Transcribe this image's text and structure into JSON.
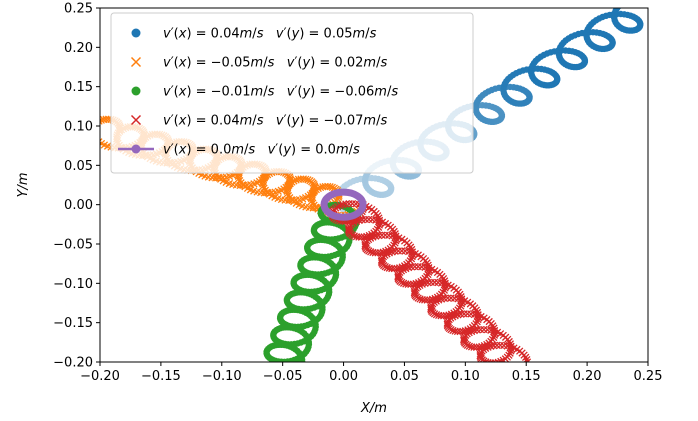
{
  "chart_data": {
    "type": "scatter",
    "xlabel": "X/m",
    "ylabel": "Y/m",
    "xlim": [
      -0.2,
      0.25
    ],
    "ylim": [
      -0.2,
      0.25
    ],
    "xticks": [
      "−0.20",
      "−0.15",
      "−0.10",
      "−0.05",
      "0.00",
      "0.05",
      "0.10",
      "0.15",
      "0.20",
      "0.25"
    ],
    "yticks": [
      "−0.20",
      "−0.15",
      "−0.10",
      "−0.05",
      "0.00",
      "0.05",
      "0.10",
      "0.15",
      "0.20",
      "0.25"
    ],
    "legend_position": "top-left",
    "series": [
      {
        "name": "v′(x) = 0.04m/s   v′(y) = 0.05m/s",
        "color": "#1f77b4",
        "marker": "circle",
        "shade": "light-to-dark",
        "start": [
          0.0,
          0.0
        ],
        "end": [
          0.25,
          0.255
        ],
        "loops": 11,
        "loop_radius": 0.016
      },
      {
        "name": "v′(x) = −0.05m/s   v′(y) = 0.02m/s",
        "color": "#ff7f0e",
        "marker": "x",
        "start": [
          0.0,
          0.0
        ],
        "end": [
          -0.2,
          0.095
        ],
        "loops": 10,
        "loop_radius": 0.016
      },
      {
        "name": "v′(x) = −0.01m/s   v′(y) = −0.06m/s",
        "color": "#2ca02c",
        "marker": "circle",
        "start": [
          0.0,
          0.0
        ],
        "end": [
          -0.05,
          -0.2
        ],
        "loops": 9,
        "loop_radius": 0.016
      },
      {
        "name": "v′(x) = 0.04m/s   v′(y) = −0.07m/s",
        "color": "#d62728",
        "marker": "x",
        "start": [
          0.0,
          0.0
        ],
        "end": [
          0.135,
          -0.2
        ],
        "loops": 10,
        "loop_radius": 0.016
      },
      {
        "name": "v′(x) = 0.0m/s   v′(y) = 0.0m/s",
        "color": "#9467bd",
        "marker": "line-circle",
        "center": [
          0.0,
          0.0
        ],
        "radius": 0.016
      }
    ]
  },
  "legend": [
    {
      "vx": "0.04",
      "vy": "0.05"
    },
    {
      "vx": "−0.05",
      "vy": "0.02"
    },
    {
      "vx": "−0.01",
      "vy": "−0.06"
    },
    {
      "vx": "0.04",
      "vy": "−0.07"
    },
    {
      "vx": "0.0",
      "vy": "0.0"
    }
  ]
}
